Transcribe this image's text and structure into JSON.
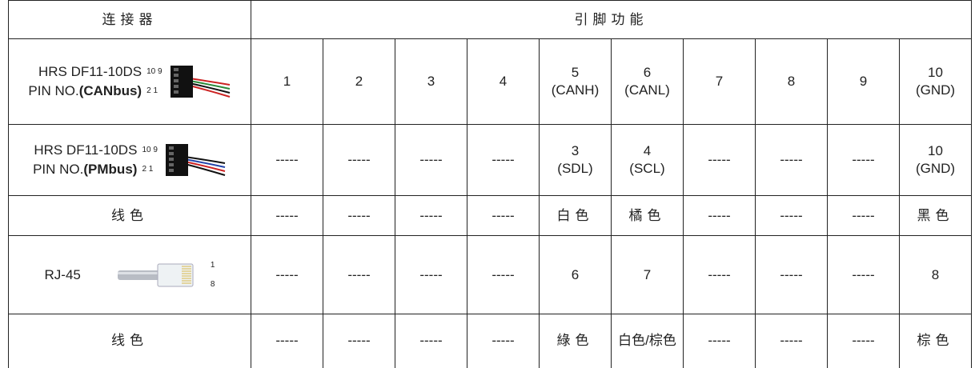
{
  "table": {
    "header": [
      "连接器",
      "引脚功能"
    ],
    "rows": [
      {
        "connector": {
          "name": "HRS DF11-10DS",
          "prefix": "PIN NO.",
          "bus": "(CANbus)",
          "pins_top": "10 9",
          "pins_bottom": "2 1"
        },
        "cells": [
          [
            "1"
          ],
          [
            "2"
          ],
          [
            "3"
          ],
          [
            "4"
          ],
          [
            "5",
            "(CANH)"
          ],
          [
            "6",
            "(CANL)"
          ],
          [
            "7"
          ],
          [
            "8"
          ],
          [
            "9"
          ],
          [
            "10",
            "(GND)"
          ]
        ]
      },
      {
        "connector": {
          "name": "HRS DF11-10DS",
          "prefix": "PIN NO.",
          "bus": "(PMbus)",
          "pins_top": "10 9",
          "pins_bottom": "2 1"
        },
        "cells": [
          [
            "-----"
          ],
          [
            "-----"
          ],
          [
            "-----"
          ],
          [
            "-----"
          ],
          [
            "3",
            "(SDL)"
          ],
          [
            "4",
            "(SCL)"
          ],
          [
            "-----"
          ],
          [
            "-----"
          ],
          [
            "-----"
          ],
          [
            "10",
            "(GND)"
          ]
        ]
      },
      {
        "label": "线色",
        "cells": [
          [
            "-----"
          ],
          [
            "-----"
          ],
          [
            "-----"
          ],
          [
            "-----"
          ],
          [
            "白色"
          ],
          [
            "橘色"
          ],
          [
            "-----"
          ],
          [
            "-----"
          ],
          [
            "-----"
          ],
          [
            "黑色"
          ]
        ]
      },
      {
        "connector": {
          "name": "RJ-45",
          "pins_top": "1",
          "pins_bottom": "8"
        },
        "cells": [
          [
            "-----"
          ],
          [
            "-----"
          ],
          [
            "-----"
          ],
          [
            "-----"
          ],
          [
            "6"
          ],
          [
            "7"
          ],
          [
            "-----"
          ],
          [
            "-----"
          ],
          [
            "-----"
          ],
          [
            "8"
          ]
        ]
      },
      {
        "label": "线色",
        "cells": [
          [
            "-----"
          ],
          [
            "-----"
          ],
          [
            "-----"
          ],
          [
            "-----"
          ],
          [
            "綠色"
          ],
          [
            "白色/棕色"
          ],
          [
            "-----"
          ],
          [
            "-----"
          ],
          [
            "-----"
          ],
          [
            "棕色"
          ]
        ]
      }
    ]
  }
}
